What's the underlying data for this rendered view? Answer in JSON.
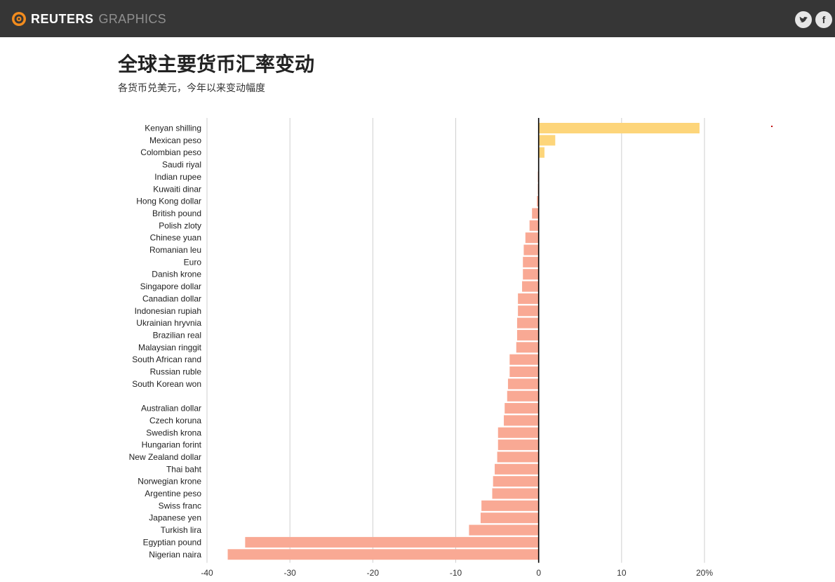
{
  "header": {
    "brand": "REUTERS",
    "brand_sub": "GRAPHICS",
    "social": {
      "twitter": "twitter",
      "facebook": "f"
    }
  },
  "colors": {
    "positive": "#fdd57a",
    "negative": "#f9a994",
    "header_bg": "#363636",
    "grid": "#cfcfcf",
    "zero_line": "#000000"
  },
  "icons": [
    "reuters-logo-icon",
    "twitter-icon",
    "facebook-icon"
  ],
  "chart_data": {
    "type": "bar",
    "orientation": "horizontal",
    "title": "全球主要货币汇率变动",
    "subtitle": "各货币兑美元，今年以来变动幅度",
    "xlim": [
      -40,
      20
    ],
    "xticks": [
      -40,
      -30,
      -20,
      -10,
      0,
      10,
      20
    ],
    "xtick_labels": [
      "-40",
      "-30",
      "-20",
      "-10",
      "0",
      "10",
      "20%"
    ],
    "grid": true,
    "categories": [
      "Kenyan shilling",
      "Mexican peso",
      "Colombian peso",
      "Saudi riyal",
      "Indian rupee",
      "Kuwaiti dinar",
      "Hong Kong dollar",
      "British pound",
      "Polish zloty",
      "Chinese yuan",
      "Romanian leu",
      "Euro",
      "Danish krone",
      "Singapore dollar",
      "Canadian dollar",
      "Indonesian rupiah",
      "Ukrainian hryvnia",
      "Brazilian real",
      "Malaysian ringgit",
      "South African rand",
      "Russian ruble",
      "South Korean won",
      "",
      "Australian dollar",
      "Czech koruna",
      "Swedish krona",
      "Hungarian forint",
      "New Zealand dollar",
      "Thai baht",
      "Norwegian krone",
      "Argentine peso",
      "Swiss franc",
      "Japanese yen",
      "Turkish lira",
      "Egyptian pound",
      "Nigerian naira"
    ],
    "values": [
      19.4,
      2.0,
      0.7,
      0.0,
      -0.1,
      -0.1,
      -0.2,
      -0.8,
      -1.1,
      -1.6,
      -1.8,
      -1.9,
      -1.9,
      -2.0,
      -2.5,
      -2.5,
      -2.6,
      -2.6,
      -2.7,
      -3.5,
      -3.5,
      -3.7,
      -3.8,
      -4.1,
      -4.2,
      -4.9,
      -4.9,
      -5.0,
      -5.3,
      -5.5,
      -5.6,
      -6.9,
      -7.0,
      -8.4,
      -35.4,
      -37.5
    ]
  }
}
